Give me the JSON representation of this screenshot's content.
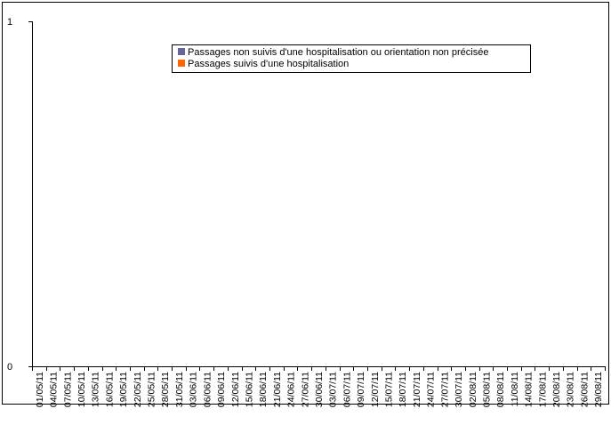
{
  "chart_data": {
    "type": "bar",
    "categories": [
      "01/05/11",
      "04/05/11",
      "07/05/11",
      "10/05/11",
      "13/05/11",
      "16/05/11",
      "19/05/11",
      "22/05/11",
      "25/05/11",
      "28/05/11",
      "31/05/11",
      "03/06/11",
      "06/06/11",
      "09/06/11",
      "12/06/11",
      "15/06/11",
      "18/06/11",
      "21/06/11",
      "24/06/11",
      "27/06/11",
      "30/06/11",
      "03/07/11",
      "06/07/11",
      "09/07/11",
      "12/07/11",
      "15/07/11",
      "18/07/11",
      "21/07/11",
      "24/07/11",
      "27/07/11",
      "30/07/11",
      "02/08/11",
      "05/08/11",
      "08/08/11",
      "11/08/11",
      "14/08/11",
      "17/08/11",
      "20/08/11",
      "23/08/11",
      "26/08/11",
      "29/08/11"
    ],
    "series": [
      {
        "name": "Passages non suivis d'une hospitalisation ou orientation non précisée",
        "color": "#666699"
      },
      {
        "name": "Passages suivis d'une hospitalisation",
        "color": "#ff6600"
      }
    ],
    "ylim": [
      0,
      1
    ],
    "yticks": [
      0,
      1
    ]
  }
}
